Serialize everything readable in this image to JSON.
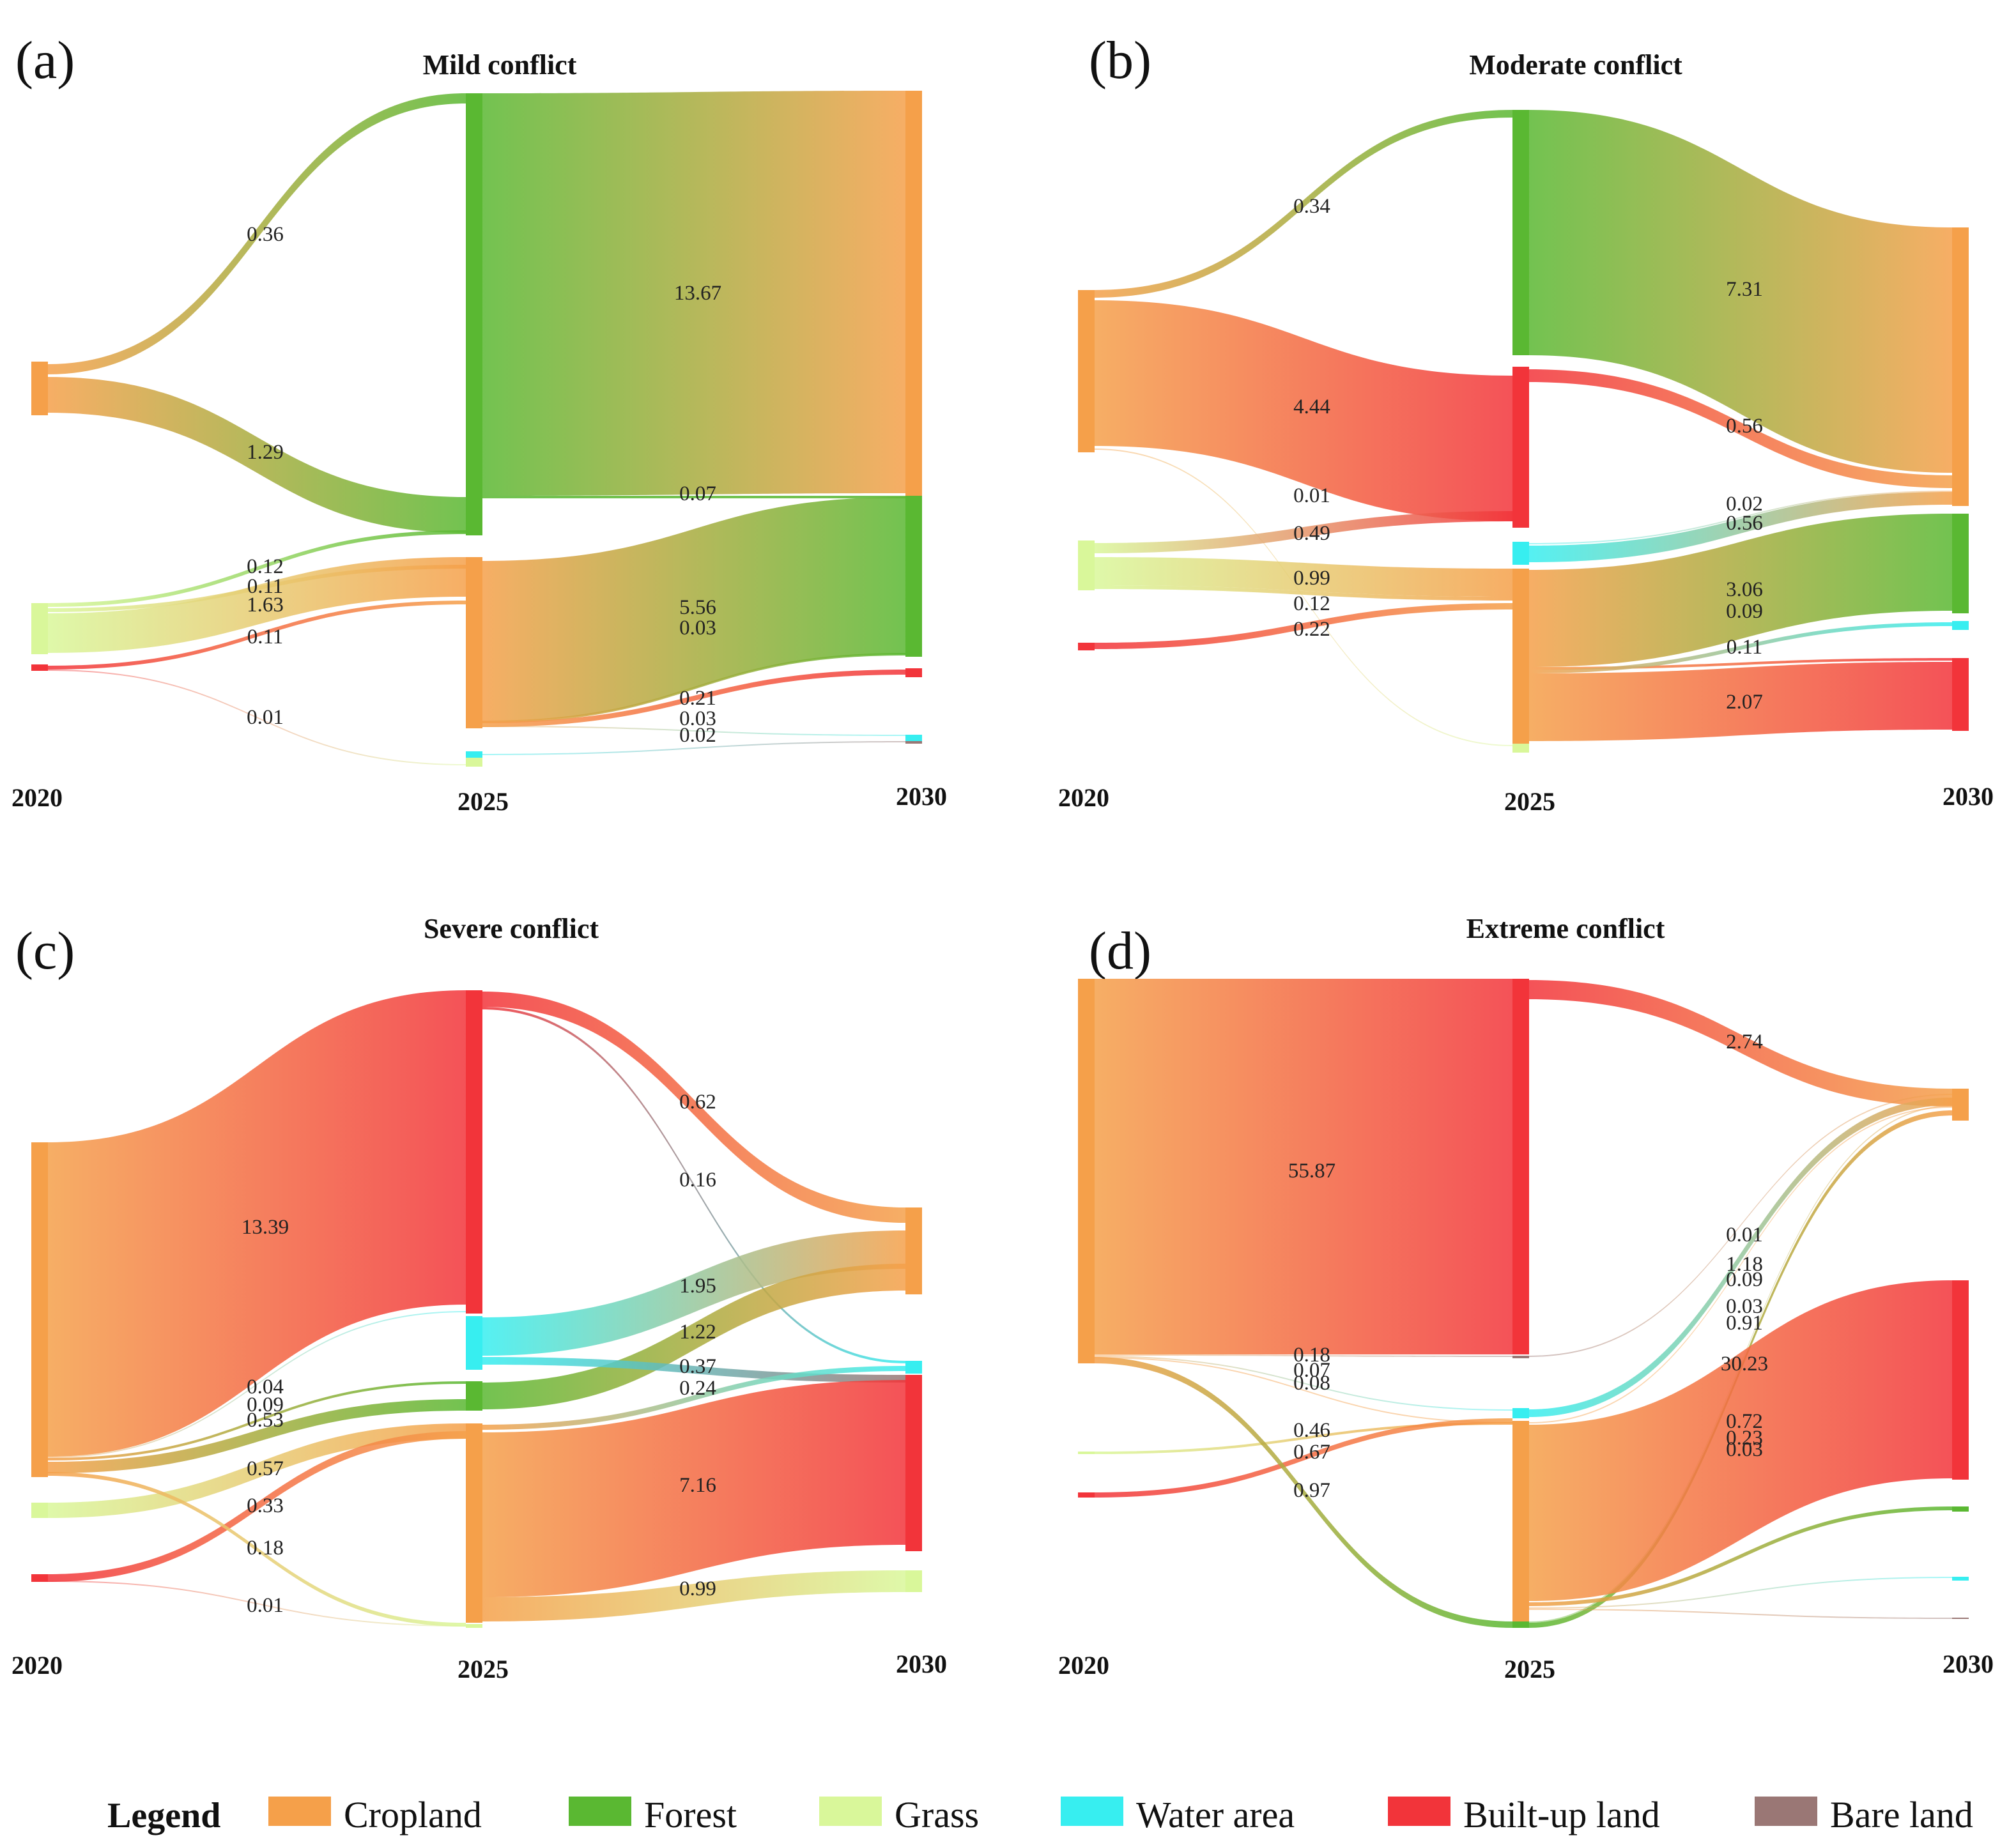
{
  "legend": {
    "title": "Legend",
    "items": [
      {
        "key": "cropland",
        "label": "Cropland",
        "color": "#f5a04a"
      },
      {
        "key": "forest",
        "label": "Forest",
        "color": "#5ab832"
      },
      {
        "key": "grass",
        "label": "Grass",
        "color": "#d9f79a"
      },
      {
        "key": "water",
        "label": "Water area",
        "color": "#37eef0"
      },
      {
        "key": "builtup",
        "label": "Built-up land",
        "color": "#f2343a"
      },
      {
        "key": "bare",
        "label": "Bare land",
        "color": "#9a7775"
      }
    ]
  },
  "chart_data": [
    {
      "type": "sankey",
      "panel": "(a)",
      "title": "Mild conflict",
      "years": [
        "2020",
        "2025",
        "2030"
      ],
      "flows": [
        {
          "stage": 0,
          "from": "cropland",
          "to": "forest",
          "label": "0.36"
        },
        {
          "stage": 0,
          "from": "cropland",
          "to": "forest",
          "label": "1.29"
        },
        {
          "stage": 0,
          "from": "grass",
          "to": "forest",
          "label": "0.12"
        },
        {
          "stage": 0,
          "from": "grass",
          "to": "cropland",
          "label": "0.11"
        },
        {
          "stage": 0,
          "from": "grass",
          "to": "cropland",
          "label": "1.63"
        },
        {
          "stage": 0,
          "from": "builtup",
          "to": "cropland",
          "label": "0.11"
        },
        {
          "stage": 0,
          "from": "builtup",
          "to": "grass",
          "label": "0.01"
        },
        {
          "stage": 1,
          "from": "forest",
          "to": "cropland",
          "label": "13.67"
        },
        {
          "stage": 1,
          "from": "forest",
          "to": "forest",
          "label": "0.07"
        },
        {
          "stage": 1,
          "from": "cropland",
          "to": "forest",
          "label": "5.56"
        },
        {
          "stage": 1,
          "from": "cropland",
          "to": "forest",
          "label": "0.03"
        },
        {
          "stage": 1,
          "from": "cropland",
          "to": "builtup",
          "label": "0.21"
        },
        {
          "stage": 1,
          "from": "cropland",
          "to": "water",
          "label": "0.03"
        },
        {
          "stage": 1,
          "from": "water",
          "to": "bare",
          "label": "0.02"
        }
      ]
    },
    {
      "type": "sankey",
      "panel": "(b)",
      "title": "Moderate conflict",
      "years": [
        "2020",
        "2025",
        "2030"
      ],
      "flows": [
        {
          "stage": 0,
          "from": "cropland",
          "to": "forest",
          "label": "0.34"
        },
        {
          "stage": 0,
          "from": "cropland",
          "to": "builtup",
          "label": "4.44"
        },
        {
          "stage": 0,
          "from": "cropland",
          "to": "grass",
          "label": "0.01"
        },
        {
          "stage": 0,
          "from": "grass",
          "to": "builtup",
          "label": "0.49"
        },
        {
          "stage": 0,
          "from": "grass",
          "to": "cropland",
          "label": "0.99"
        },
        {
          "stage": 0,
          "from": "grass",
          "to": "cropland",
          "label": "0.12"
        },
        {
          "stage": 0,
          "from": "builtup",
          "to": "cropland",
          "label": "0.22"
        },
        {
          "stage": 1,
          "from": "forest",
          "to": "cropland",
          "label": "7.31"
        },
        {
          "stage": 1,
          "from": "builtup",
          "to": "cropland",
          "label": "0.56"
        },
        {
          "stage": 1,
          "from": "water",
          "to": "cropland",
          "label": "0.02"
        },
        {
          "stage": 1,
          "from": "water",
          "to": "cropland",
          "label": "0.56"
        },
        {
          "stage": 1,
          "from": "cropland",
          "to": "forest",
          "label": "3.06"
        },
        {
          "stage": 1,
          "from": "cropland",
          "to": "builtup",
          "label": "0.09"
        },
        {
          "stage": 1,
          "from": "cropland",
          "to": "water",
          "label": "0.11"
        },
        {
          "stage": 1,
          "from": "cropland",
          "to": "builtup",
          "label": "2.07"
        }
      ]
    },
    {
      "type": "sankey",
      "panel": "(c)",
      "title": "Severe conflict",
      "years": [
        "2020",
        "2025",
        "2030"
      ],
      "flows": [
        {
          "stage": 0,
          "from": "cropland",
          "to": "builtup",
          "label": "13.39"
        },
        {
          "stage": 0,
          "from": "cropland",
          "to": "water",
          "label": "0.04"
        },
        {
          "stage": 0,
          "from": "cropland",
          "to": "forest",
          "label": "0.09"
        },
        {
          "stage": 0,
          "from": "cropland",
          "to": "forest",
          "label": "0.53"
        },
        {
          "stage": 0,
          "from": "grass",
          "to": "cropland",
          "label": "0.57"
        },
        {
          "stage": 0,
          "from": "builtup",
          "to": "cropland",
          "label": "0.33"
        },
        {
          "stage": 0,
          "from": "cropland",
          "to": "grass",
          "label": "0.18"
        },
        {
          "stage": 0,
          "from": "builtup",
          "to": "grass",
          "label": "0.01"
        },
        {
          "stage": 1,
          "from": "builtup",
          "to": "cropland",
          "label": "0.62"
        },
        {
          "stage": 1,
          "from": "builtup",
          "to": "water",
          "label": "0.16"
        },
        {
          "stage": 1,
          "from": "water",
          "to": "cropland",
          "label": "1.95"
        },
        {
          "stage": 1,
          "from": "forest",
          "to": "cropland",
          "label": "1.22"
        },
        {
          "stage": 1,
          "from": "water",
          "to": "bare",
          "label": "0.37"
        },
        {
          "stage": 1,
          "from": "cropland",
          "to": "water",
          "label": "0.24"
        },
        {
          "stage": 1,
          "from": "cropland",
          "to": "builtup",
          "label": "7.16"
        },
        {
          "stage": 1,
          "from": "cropland",
          "to": "grass",
          "label": "0.99"
        }
      ]
    },
    {
      "type": "sankey",
      "panel": "(d)",
      "title": "Extreme conflict",
      "years": [
        "2020",
        "2025",
        "2030"
      ],
      "flows": [
        {
          "stage": 0,
          "from": "cropland",
          "to": "builtup",
          "label": "55.87"
        },
        {
          "stage": 0,
          "from": "cropland",
          "to": "bare",
          "label": "0.18"
        },
        {
          "stage": 0,
          "from": "cropland",
          "to": "water",
          "label": "0.07"
        },
        {
          "stage": 0,
          "from": "cropland",
          "to": "cropland",
          "label": "0.08"
        },
        {
          "stage": 0,
          "from": "grass",
          "to": "cropland",
          "label": "0.46"
        },
        {
          "stage": 0,
          "from": "builtup",
          "to": "cropland",
          "label": "0.67"
        },
        {
          "stage": 0,
          "from": "cropland",
          "to": "forest",
          "label": "0.97"
        },
        {
          "stage": 1,
          "from": "builtup",
          "to": "cropland",
          "label": "2.74"
        },
        {
          "stage": 1,
          "from": "bare",
          "to": "cropland",
          "label": "0.01"
        },
        {
          "stage": 1,
          "from": "water",
          "to": "cropland",
          "label": "1.18"
        },
        {
          "stage": 1,
          "from": "forest",
          "to": "cropland",
          "label": "0.09"
        },
        {
          "stage": 1,
          "from": "cropland",
          "to": "cropland",
          "label": "0.03"
        },
        {
          "stage": 1,
          "from": "forest",
          "to": "cropland",
          "label": "0.91"
        },
        {
          "stage": 1,
          "from": "cropland",
          "to": "builtup",
          "label": "30.23"
        },
        {
          "stage": 1,
          "from": "cropland",
          "to": "forest",
          "label": "0.72"
        },
        {
          "stage": 1,
          "from": "cropland",
          "to": "water",
          "label": "0.23"
        },
        {
          "stage": 1,
          "from": "cropland",
          "to": "bare",
          "label": "0.03"
        }
      ]
    }
  ]
}
